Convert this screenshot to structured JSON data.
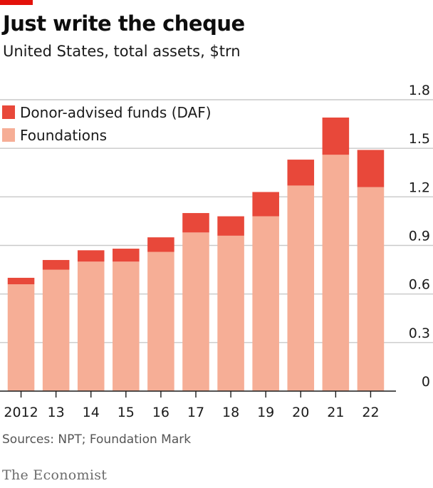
{
  "header": {
    "title": "Just write the cheque",
    "subtitle": "United States, total assets, $trn"
  },
  "footer": {
    "source": "Sources: NPT; Foundation Mark",
    "brand": "The Economist"
  },
  "colors": {
    "accent": "#e3120b",
    "daf": "#e8483a",
    "foundations": "#f6ae96",
    "grid": "#c9c9c9",
    "axis": "#1a1a1a"
  },
  "chart_data": {
    "type": "bar",
    "stacked": true,
    "categories": [
      "2012",
      "13",
      "14",
      "15",
      "16",
      "17",
      "18",
      "19",
      "20",
      "21",
      "22"
    ],
    "series": [
      {
        "name": "Foundations",
        "values": [
          0.66,
          0.75,
          0.8,
          0.8,
          0.86,
          0.98,
          0.96,
          1.08,
          1.27,
          1.46,
          1.26
        ]
      },
      {
        "name": "Donor-advised funds (DAF)",
        "values": [
          0.04,
          0.06,
          0.07,
          0.08,
          0.09,
          0.12,
          0.12,
          0.15,
          0.16,
          0.23,
          0.23
        ]
      }
    ],
    "ylim": [
      0,
      1.8
    ],
    "yticks": [
      0,
      0.3,
      0.6,
      0.9,
      1.2,
      1.5,
      1.8
    ],
    "ytick_labels": [
      "0",
      "0.3",
      "0.6",
      "0.9",
      "1.2",
      "1.5",
      "1.8"
    ],
    "grid": true,
    "legend_position": "top-left",
    "legend": [
      "Donor-advised funds (DAF)",
      "Foundations"
    ]
  }
}
